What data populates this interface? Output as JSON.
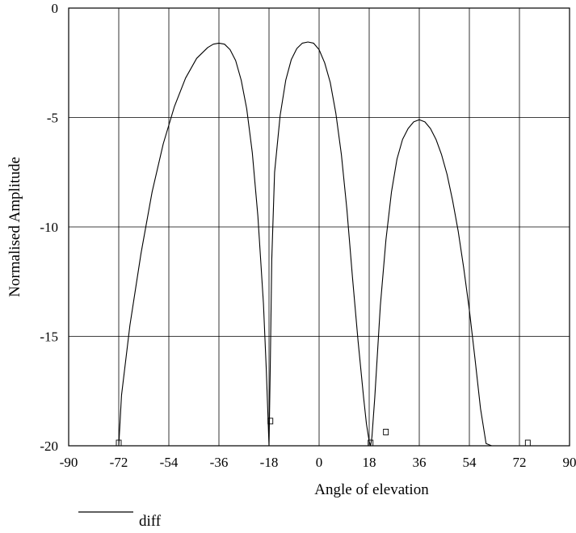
{
  "chart_data": {
    "type": "line",
    "title": "",
    "xlabel": "Angle of elevation",
    "ylabel": "Normalised Amplitude",
    "xlim": [
      -90,
      90
    ],
    "ylim": [
      -20,
      0
    ],
    "xticks": [
      -90,
      -72,
      -54,
      -36,
      -18,
      0,
      18,
      36,
      54,
      72,
      90
    ],
    "yticks": [
      0,
      -5,
      -10,
      -15,
      -20
    ],
    "xtick_labels": [
      "-90",
      "-72",
      "-54",
      "-36",
      "-18",
      "0",
      "18",
      "36",
      "54",
      "72",
      "90"
    ],
    "ytick_labels": [
      "0",
      "-5",
      "-10",
      "-15",
      "-20"
    ],
    "grid": true,
    "legend_position": "bottom-left",
    "series": [
      {
        "name": "diff",
        "color": "#000000",
        "x": [
          -72,
          -71,
          -68,
          -64,
          -60,
          -56,
          -52,
          -48,
          -44,
          -40,
          -38,
          -36,
          -34,
          -32,
          -30,
          -28,
          -26,
          -24,
          -22,
          -20,
          -19,
          -18,
          -17.5,
          -17,
          -16,
          -14,
          -12,
          -10,
          -8,
          -6,
          -4,
          -2,
          0,
          2,
          4,
          6,
          8,
          10,
          12,
          14,
          16,
          17,
          18,
          18.5,
          19,
          20,
          22,
          24,
          26,
          28,
          30,
          32,
          34,
          36,
          38,
          40,
          42,
          44,
          46,
          48,
          50,
          52,
          54,
          56,
          58,
          60,
          62,
          64,
          66,
          68,
          70,
          72,
          74,
          75
        ],
        "values": [
          -20,
          -17.7,
          -14.5,
          -11.2,
          -8.4,
          -6.2,
          -4.5,
          -3.2,
          -2.3,
          -1.8,
          -1.65,
          -1.6,
          -1.65,
          -1.9,
          -2.4,
          -3.3,
          -4.6,
          -6.6,
          -9.5,
          -13.5,
          -16.5,
          -20,
          -16,
          -11.5,
          -7.5,
          -4.9,
          -3.3,
          -2.35,
          -1.85,
          -1.6,
          -1.55,
          -1.6,
          -1.9,
          -2.5,
          -3.4,
          -4.8,
          -6.7,
          -9.2,
          -12.3,
          -15.2,
          -17.8,
          -19,
          -19.8,
          -20,
          -19.6,
          -17.8,
          -13.6,
          -10.6,
          -8.4,
          -6.9,
          -6.0,
          -5.5,
          -5.2,
          -5.1,
          -5.2,
          -5.5,
          -6.0,
          -6.7,
          -7.6,
          -8.8,
          -10.2,
          -11.9,
          -13.8,
          -16,
          -18.3,
          -19.9,
          -20,
          -20,
          -20,
          -20,
          -20,
          -20,
          -20,
          -20
        ]
      }
    ],
    "markers": [
      {
        "x": -72,
        "y": -20
      },
      {
        "x": -17.5,
        "y": -19
      },
      {
        "x": 18.5,
        "y": -20
      },
      {
        "x": 24,
        "y": -19.5
      },
      {
        "x": 75,
        "y": -20
      }
    ]
  }
}
